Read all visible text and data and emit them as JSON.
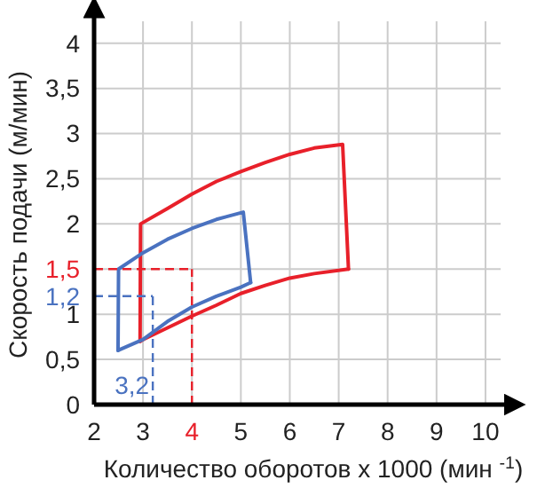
{
  "chart_data": {
    "type": "line",
    "xlabel": "Количество оборотов x 1000 (мин $^{-1}$)",
    "ylabel": "Скорость подачи (м/мин)",
    "xlim": [
      2,
      10.6
    ],
    "xticks": [
      2,
      3,
      {
        "value": 4,
        "label": null
      },
      5,
      6,
      7,
      8,
      9,
      10
    ],
    "ylim": [
      0,
      4.4
    ],
    "yticks": [
      0,
      {
        "value": 0.5,
        "label": "0,5"
      },
      1,
      {
        "value": 1.5,
        "label": null
      },
      2,
      {
        "value": 2.5,
        "label": "2,5"
      },
      3,
      {
        "value": 3.5,
        "label": "3,5"
      },
      4
    ],
    "grid": true,
    "marker": "none",
    "line_style": "solid",
    "series": [
      {
        "color": "#e8202a",
        "x": [
          2.94,
          2.95,
          3.5,
          4,
          4.5,
          5,
          5.5,
          6,
          6.5,
          7.08,
          7.2
        ],
        "values": [
          0.7,
          2.0,
          2.17,
          2.33,
          2.47,
          2.58,
          2.68,
          2.77,
          2.84,
          2.88,
          1.5
        ]
      },
      {
        "color": "#e8202a",
        "x": [
          2.94,
          3,
          3.5,
          4,
          4.5,
          5,
          5.5,
          6,
          6.5,
          7.2
        ],
        "values": [
          0.7,
          0.72,
          0.85,
          0.98,
          1.1,
          1.23,
          1.32,
          1.4,
          1.45,
          1.5
        ]
      },
      {
        "color": "#4a72c0",
        "x": [
          2.49,
          2.5,
          3,
          3.5,
          4,
          4.5,
          5.05,
          5.2
        ],
        "values": [
          0.6,
          1.5,
          1.68,
          1.83,
          1.95,
          2.05,
          2.13,
          1.35
        ]
      },
      {
        "color": "#4a72c0",
        "x": [
          2.49,
          3,
          3.5,
          4,
          4.5,
          5,
          5.2
        ],
        "values": [
          0.6,
          0.72,
          0.92,
          1.08,
          1.2,
          1.3,
          1.35
        ]
      }
    ],
    "ref_lines": [
      {
        "axis": "y",
        "value": 1.5,
        "label": "1,5",
        "color": "#e8202a",
        "line_style": "dashed"
      },
      {
        "axis": "x",
        "value": 4,
        "label": "4",
        "color": "#e8202a",
        "line_style": "dashed"
      },
      {
        "axis": "y",
        "value": 1.2,
        "label": "1,2",
        "color": "#4a72c0",
        "line_style": "dashed"
      },
      {
        "axis": "x",
        "value": 3.2,
        "label": "3,2",
        "color": "#4a72c0",
        "line_style": "dashed"
      }
    ]
  }
}
